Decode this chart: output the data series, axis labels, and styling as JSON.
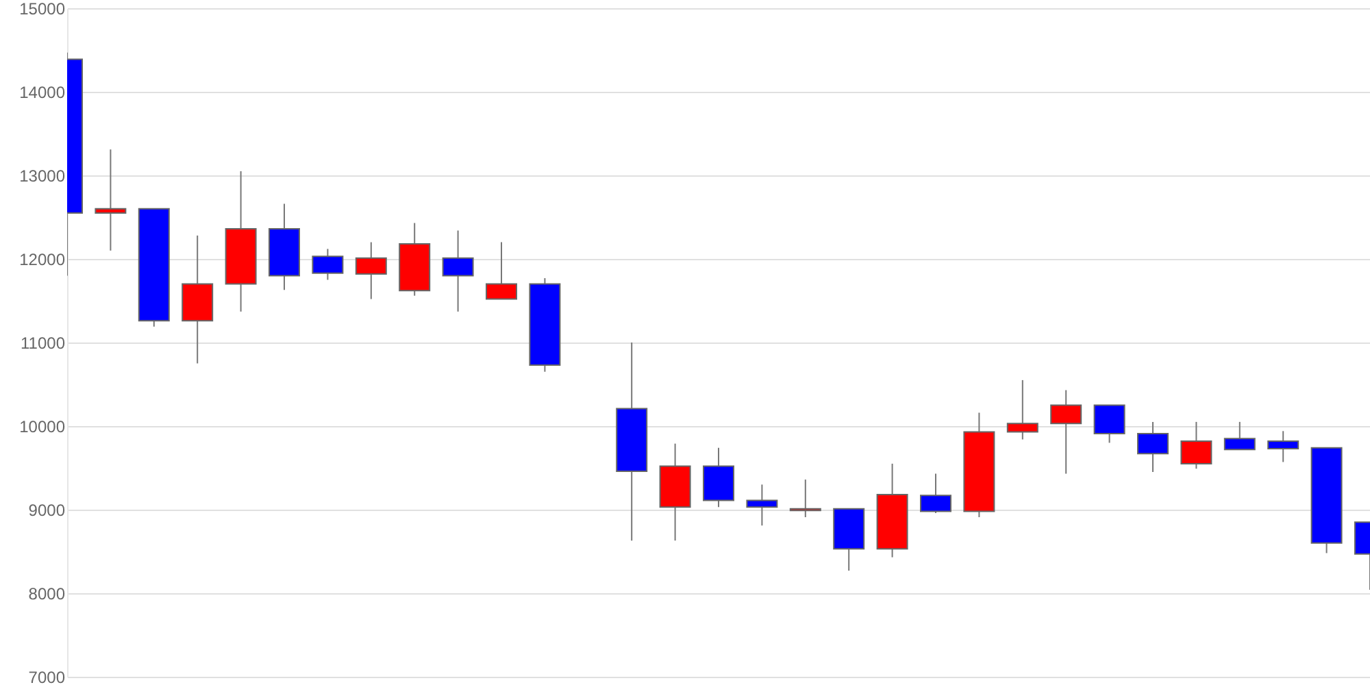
{
  "chart_data": {
    "type": "candlestick",
    "categories": [
      null,
      null,
      null,
      null,
      null,
      null,
      null,
      null,
      null,
      null,
      null,
      null,
      null,
      null,
      null,
      null,
      null,
      null,
      null,
      null,
      null,
      null,
      null,
      null,
      null,
      null,
      null,
      null,
      null,
      null,
      null
    ],
    "ohlc": [
      [
        14390,
        14470,
        11800,
        12550
      ],
      [
        12550,
        13310,
        12100,
        12600
      ],
      [
        12600,
        12600,
        11190,
        11260
      ],
      [
        11260,
        12280,
        10750,
        11700
      ],
      [
        11700,
        13050,
        11370,
        12360
      ],
      [
        12360,
        12660,
        11630,
        11800
      ],
      [
        12030,
        12120,
        11750,
        11830
      ],
      [
        11820,
        12200,
        11520,
        12010
      ],
      [
        11620,
        12430,
        11560,
        12180
      ],
      [
        12010,
        12340,
        11370,
        11800
      ],
      [
        11520,
        12200,
        11520,
        11700
      ],
      [
        11700,
        11770,
        10650,
        10730
      ],
      null,
      [
        10210,
        11000,
        8630,
        9460
      ],
      [
        9030,
        9790,
        8630,
        9520
      ],
      [
        9520,
        9740,
        9030,
        9110
      ],
      [
        9110,
        9300,
        8810,
        9030
      ],
      [
        8990,
        9360,
        8910,
        9010
      ],
      [
        9010,
        9010,
        8270,
        8530
      ],
      [
        8530,
        9550,
        8430,
        9180
      ],
      [
        9170,
        9430,
        8960,
        8980
      ],
      [
        8980,
        10160,
        8910,
        9930
      ],
      [
        9930,
        10550,
        9840,
        10030
      ],
      [
        10030,
        10430,
        9430,
        10250
      ],
      [
        10250,
        10250,
        9800,
        9910
      ],
      [
        9910,
        10050,
        9450,
        9670
      ],
      [
        9550,
        10050,
        9490,
        9820
      ],
      [
        9850,
        10050,
        9720,
        9720
      ],
      [
        9820,
        9940,
        9570,
        9730
      ],
      [
        9740,
        9740,
        8480,
        8600
      ],
      [
        8850,
        8850,
        8040,
        8470
      ]
    ],
    "colors": [
      "#0000ff",
      "#ff0000",
      "#0000ff",
      "#ff0000",
      "#ff0000",
      "#0000ff",
      "#0000ff",
      "#ff0000",
      "#ff0000",
      "#0000ff",
      "#ff0000",
      "#0000ff",
      null,
      "#0000ff",
      "#ff0000",
      "#0000ff",
      "#0000ff",
      "#ff0000",
      "#0000ff",
      "#ff0000",
      "#0000ff",
      "#ff0000",
      "#ff0000",
      "#ff0000",
      "#0000ff",
      "#0000ff",
      "#ff0000",
      "#0000ff",
      "#0000ff",
      "#0000ff",
      "#0000ff"
    ],
    "ylim": [
      7000,
      15000
    ],
    "yticks": [
      7000,
      8000,
      9000,
      10000,
      11000,
      12000,
      13000,
      14000,
      15000
    ],
    "grid": "y",
    "tick_labels": "y"
  }
}
